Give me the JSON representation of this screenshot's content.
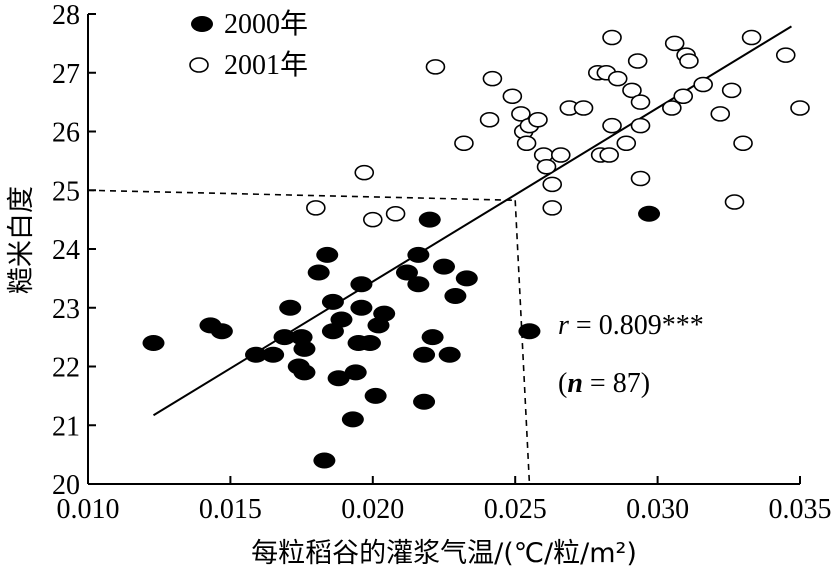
{
  "chart_data": {
    "type": "scatter",
    "xlabel": "每粒稻谷的灌浆气温/(℃/粒/m²)",
    "ylabel": "糙米白度",
    "xlim": [
      0.01,
      0.035
    ],
    "ylim": [
      20,
      28
    ],
    "x_ticks": [
      "0.010",
      "0.015",
      "0.020",
      "0.025",
      "0.030",
      "0.035"
    ],
    "y_ticks": [
      "20",
      "21",
      "22",
      "23",
      "24",
      "25",
      "26",
      "27",
      "28"
    ],
    "legend_position": "top-left",
    "series": [
      {
        "name": "2000年",
        "marker": "filled-ellipse",
        "color": "#000000",
        "points": [
          [
            0.0123,
            22.4
          ],
          [
            0.0143,
            22.7
          ],
          [
            0.0147,
            22.6
          ],
          [
            0.0159,
            22.2
          ],
          [
            0.0165,
            22.2
          ],
          [
            0.0169,
            22.5
          ],
          [
            0.0171,
            23.0
          ],
          [
            0.0174,
            22.0
          ],
          [
            0.0175,
            22.5
          ],
          [
            0.0176,
            21.9
          ],
          [
            0.0176,
            22.3
          ],
          [
            0.0181,
            23.6
          ],
          [
            0.0183,
            20.4
          ],
          [
            0.0184,
            23.9
          ],
          [
            0.0186,
            23.1
          ],
          [
            0.0186,
            22.6
          ],
          [
            0.0188,
            21.8
          ],
          [
            0.0189,
            22.8
          ],
          [
            0.0193,
            21.1
          ],
          [
            0.0194,
            21.9
          ],
          [
            0.0195,
            22.4
          ],
          [
            0.0196,
            23.4
          ],
          [
            0.0196,
            23.0
          ],
          [
            0.0199,
            22.4
          ],
          [
            0.0201,
            21.5
          ],
          [
            0.0202,
            22.7
          ],
          [
            0.0204,
            22.9
          ],
          [
            0.0212,
            23.6
          ],
          [
            0.0216,
            23.9
          ],
          [
            0.0216,
            23.4
          ],
          [
            0.0218,
            22.2
          ],
          [
            0.0218,
            21.4
          ],
          [
            0.022,
            24.5
          ],
          [
            0.0221,
            22.5
          ],
          [
            0.0225,
            23.7
          ],
          [
            0.0227,
            22.2
          ],
          [
            0.0229,
            23.2
          ],
          [
            0.0233,
            23.5
          ],
          [
            0.0255,
            22.6
          ],
          [
            0.0297,
            24.6
          ]
        ]
      },
      {
        "name": "2001年",
        "marker": "open-ellipse",
        "color": "#000000",
        "points": [
          [
            0.018,
            24.7
          ],
          [
            0.0197,
            25.3
          ],
          [
            0.02,
            24.5
          ],
          [
            0.0208,
            24.6
          ],
          [
            0.0222,
            27.1
          ],
          [
            0.0232,
            25.8
          ],
          [
            0.0241,
            26.2
          ],
          [
            0.0242,
            26.9
          ],
          [
            0.0249,
            26.6
          ],
          [
            0.0252,
            26.3
          ],
          [
            0.0253,
            26.0
          ],
          [
            0.0254,
            25.8
          ],
          [
            0.0255,
            26.1
          ],
          [
            0.0258,
            26.2
          ],
          [
            0.026,
            25.6
          ],
          [
            0.0261,
            25.4
          ],
          [
            0.0263,
            24.7
          ],
          [
            0.0263,
            25.1
          ],
          [
            0.0266,
            25.6
          ],
          [
            0.0269,
            26.4
          ],
          [
            0.0274,
            26.4
          ],
          [
            0.0279,
            27.0
          ],
          [
            0.028,
            25.6
          ],
          [
            0.0282,
            27.0
          ],
          [
            0.0283,
            25.6
          ],
          [
            0.0284,
            26.1
          ],
          [
            0.0284,
            27.6
          ],
          [
            0.0286,
            26.9
          ],
          [
            0.0289,
            25.8
          ],
          [
            0.0291,
            26.7
          ],
          [
            0.0293,
            27.2
          ],
          [
            0.0294,
            26.5
          ],
          [
            0.0294,
            26.1
          ],
          [
            0.0294,
            25.2
          ],
          [
            0.0305,
            26.4
          ],
          [
            0.0306,
            27.5
          ],
          [
            0.0309,
            26.6
          ],
          [
            0.031,
            27.3
          ],
          [
            0.0311,
            27.2
          ],
          [
            0.0316,
            26.8
          ],
          [
            0.0322,
            26.3
          ],
          [
            0.0326,
            26.7
          ],
          [
            0.0327,
            24.8
          ],
          [
            0.033,
            25.8
          ],
          [
            0.0333,
            27.6
          ],
          [
            0.0345,
            27.3
          ],
          [
            0.035,
            26.4
          ]
        ]
      }
    ],
    "regression_line": {
      "x": [
        0.0123,
        0.0347
      ],
      "y": [
        21.17,
        27.79
      ]
    },
    "reference_lines": {
      "y_value": 25.0,
      "x_value": 0.0255,
      "style": "dashed"
    },
    "annotations": {
      "r_symbol": "r",
      "r_value": " = 0.809***",
      "n_open": "(",
      "n_symbol": "n",
      "n_value": " = 87)"
    }
  }
}
